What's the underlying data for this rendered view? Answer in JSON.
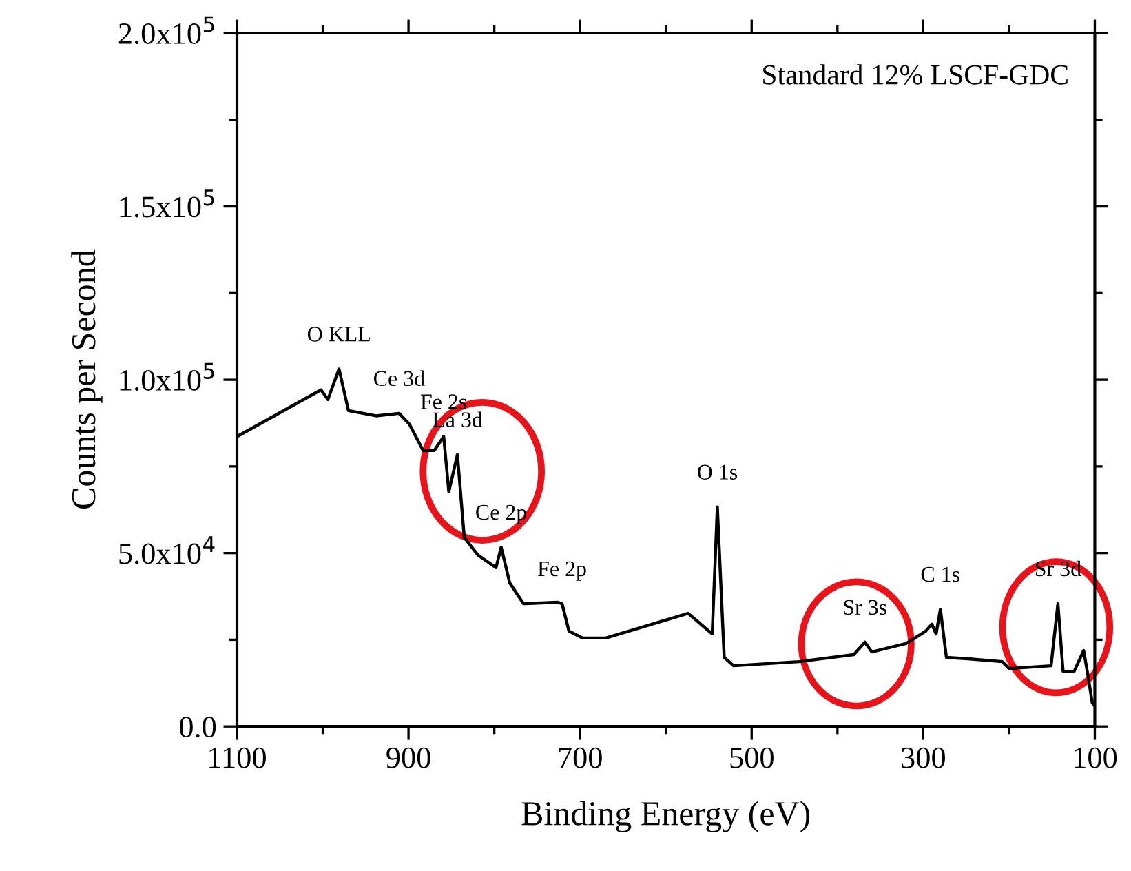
{
  "chart_data": {
    "type": "line",
    "xlabel": "Binding Energy (eV)",
    "ylabel": "Counts per Second",
    "xlim": [
      1100,
      100
    ],
    "ylim": [
      0,
      200000
    ],
    "xticks": [
      1100,
      900,
      700,
      500,
      300,
      100
    ],
    "yticks": [
      {
        "value": 0,
        "label": "0.0"
      },
      {
        "value": 50000,
        "label": "5.0x10$^{4}$"
      },
      {
        "value": 100000,
        "label": "1.0x10$^{5}$"
      },
      {
        "value": 150000,
        "label": "1.5x10$^{5}$"
      },
      {
        "value": 200000,
        "label": "2.0x10$^{5}$"
      }
    ],
    "grid": false,
    "legend": false,
    "marker": "none",
    "line_style": "solid",
    "x": [
      1100,
      1002,
      994,
      981,
      970,
      938,
      911,
      899,
      883,
      870,
      859,
      853,
      843,
      835,
      819,
      798,
      792,
      782,
      766,
      726,
      721,
      713,
      697,
      670,
      574,
      546,
      540,
      532,
      521,
      445,
      381,
      368,
      360,
      320,
      297,
      290,
      285,
      280,
      273,
      248,
      208,
      200,
      151,
      143,
      137,
      124,
      113,
      108,
      103,
      100
    ],
    "series": [
      {
        "color": "#000000",
        "values": [
          83600,
          97100,
          94300,
          103100,
          91100,
          89600,
          90300,
          87200,
          79600,
          79600,
          83600,
          67700,
          78400,
          54500,
          49400,
          45800,
          51700,
          41400,
          35400,
          35800,
          35400,
          27500,
          25500,
          25500,
          32600,
          26700,
          63300,
          19900,
          17500,
          18700,
          20700,
          24300,
          21500,
          23900,
          27500,
          29500,
          26700,
          33800,
          19900,
          19500,
          18700,
          16700,
          17500,
          35400,
          15900,
          15900,
          21900,
          14700,
          6800,
          6000
        ]
      }
    ],
    "annotations": [
      "Standard 12% LSCF-GDC",
      {
        "text": "O KLL",
        "x": 981,
        "y": 103100
      },
      {
        "text": "Ce 3d",
        "x": 911,
        "y": 90300
      },
      {
        "text": "Fe 2s",
        "x": 859,
        "y": 83600
      },
      {
        "text": "La 3d",
        "x": 843,
        "y": 78400
      },
      {
        "text": "Ce 2p",
        "x": 792,
        "y": 51700
      },
      {
        "text": "Fe 2p",
        "x": 721,
        "y": 35400
      },
      {
        "text": "O 1s",
        "x": 540,
        "y": 63300
      },
      {
        "text": "Sr 3s",
        "x": 368,
        "y": 24300
      },
      {
        "text": "C 1s",
        "x": 280,
        "y": 33800
      },
      {
        "text": "Sr 3d",
        "x": 143,
        "y": 35400
      }
    ]
  }
}
